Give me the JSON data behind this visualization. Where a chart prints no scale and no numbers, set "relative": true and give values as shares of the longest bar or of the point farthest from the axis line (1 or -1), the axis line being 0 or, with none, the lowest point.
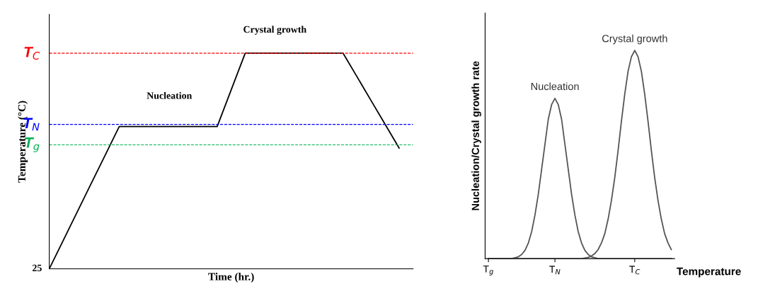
{
  "chart_data": [
    {
      "type": "line",
      "relative": true,
      "xlabel": "Time (hr.)",
      "ylabel": "Temperature (°C)",
      "categories": [
        null,
        null,
        null,
        null,
        null,
        null,
        null,
        null,
        null,
        null,
        null,
        null,
        null,
        null,
        null,
        null,
        null,
        null,
        null,
        null,
        null,
        null,
        null,
        null,
        null,
        null
      ],
      "series": [
        {
          "color": "#000000",
          "values": [
            0,
            0.132,
            0.264,
            0.396,
            0.528,
            0.66,
            0.66,
            0.66,
            0.66,
            0.66,
            0.66,
            0.66,
            0.66,
            0.83,
            1,
            1,
            1,
            1,
            1,
            1,
            1,
            1,
            0.89,
            0.78,
            0.67,
            0.56
          ]
        }
      ],
      "ref_lines": [
        {
          "axis": "y",
          "value": 1,
          "label": "T$_{C}$",
          "color": "#ff0000",
          "line_style": "dashed"
        },
        {
          "axis": "y",
          "value": 0.67,
          "label": "T$_{N}$",
          "color": "#0000ff",
          "line_style": "dashed"
        },
        {
          "axis": "y",
          "value": 0.575,
          "label": "T$_{g}$",
          "color": "#00b050",
          "line_style": "dashed"
        }
      ],
      "annotations": [
        "25",
        "Nucleation",
        "Crystal growth"
      ],
      "tick_labels": false,
      "grid": false,
      "legend": false,
      "marker": "none",
      "line_style": "solid"
    },
    {
      "type": "line",
      "relative": true,
      "xlabel": "Temperature",
      "ylabel": "Nucleation/Crystal growth rate",
      "categories": [
        "T$_{g}$",
        null,
        null,
        null,
        null,
        null,
        null,
        null,
        null,
        null,
        null,
        null,
        null,
        null,
        null,
        null,
        null,
        null,
        null,
        null,
        "T$_{N}$",
        null,
        null,
        null,
        null,
        null,
        null,
        null,
        null,
        null,
        null,
        null,
        null,
        null,
        null,
        null,
        null,
        null,
        null,
        null,
        null,
        null,
        null,
        null,
        "T$_{C}$",
        null,
        null,
        null,
        null,
        null,
        null,
        null,
        null,
        null,
        null,
        null
      ],
      "series": [
        {
          "name": "Nucleation",
          "color": "#555555",
          "values": [
            0,
            0,
            0,
            0,
            0,
            0,
            0,
            0,
            0.004,
            0.009,
            0.02,
            0.04,
            0.075,
            0.13,
            0.21,
            0.31,
            0.43,
            0.55,
            0.67,
            0.74,
            0.77,
            0.74,
            0.67,
            0.55,
            0.43,
            0.31,
            0.21,
            0.13,
            0.075,
            0.04,
            0.02,
            0.009,
            0.004,
            0,
            0,
            0,
            0,
            0,
            0,
            0,
            0,
            0,
            0,
            0,
            0,
            0,
            0,
            0,
            0,
            0,
            0,
            0,
            0,
            0,
            0,
            0
          ]
        },
        {
          "name": "Crystal growth",
          "color": "#555555",
          "values": [
            0,
            0,
            0,
            0,
            0,
            0,
            0,
            0,
            0,
            0,
            0,
            0,
            0,
            0,
            0,
            0,
            0,
            0,
            0,
            0,
            0,
            0,
            0,
            0,
            0,
            0,
            0,
            0,
            0,
            0.003,
            0.006,
            0.013,
            0.024,
            0.044,
            0.076,
            0.12,
            0.19,
            0.28,
            0.39,
            0.52,
            0.66,
            0.79,
            0.9,
            0.97,
            1,
            0.97,
            0.9,
            0.79,
            0.66,
            0.52,
            0.39,
            0.28,
            0.19,
            0.12,
            0.076,
            0.044
          ]
        }
      ],
      "tick_labels": "x",
      "grid": false,
      "legend": false,
      "marker": "none",
      "line_style": "solid"
    }
  ]
}
